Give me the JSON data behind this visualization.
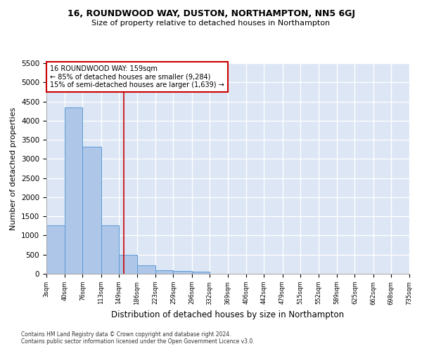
{
  "title1": "16, ROUNDWOOD WAY, DUSTON, NORTHAMPTON, NN5 6GJ",
  "title2": "Size of property relative to detached houses in Northampton",
  "xlabel": "Distribution of detached houses by size in Northampton",
  "ylabel": "Number of detached properties",
  "footnote1": "Contains HM Land Registry data © Crown copyright and database right 2024.",
  "footnote2": "Contains public sector information licensed under the Open Government Licence v3.0.",
  "annotation_line1": "16 ROUNDWOOD WAY: 159sqm",
  "annotation_line2": "← 85% of detached houses are smaller (9,284)",
  "annotation_line3": "15% of semi-detached houses are larger (1,639) →",
  "property_size": 159,
  "bin_edges": [
    3,
    40,
    76,
    113,
    149,
    186,
    223,
    259,
    296,
    332,
    369,
    406,
    442,
    479,
    515,
    552,
    589,
    625,
    662,
    698,
    735
  ],
  "bar_heights": [
    1270,
    4350,
    3320,
    1270,
    490,
    220,
    100,
    70,
    60,
    0,
    0,
    0,
    0,
    0,
    0,
    0,
    0,
    0,
    0,
    0
  ],
  "bar_color": "#aec6e8",
  "bar_edge_color": "#5b9bd5",
  "vline_color": "#cc0000",
  "vline_x": 159,
  "annotation_box_edge": "#cc0000",
  "background_color": "#dce6f5",
  "grid_color": "#ffffff",
  "ylim": [
    0,
    5500
  ],
  "yticks": [
    0,
    500,
    1000,
    1500,
    2000,
    2500,
    3000,
    3500,
    4000,
    4500,
    5000,
    5500
  ]
}
